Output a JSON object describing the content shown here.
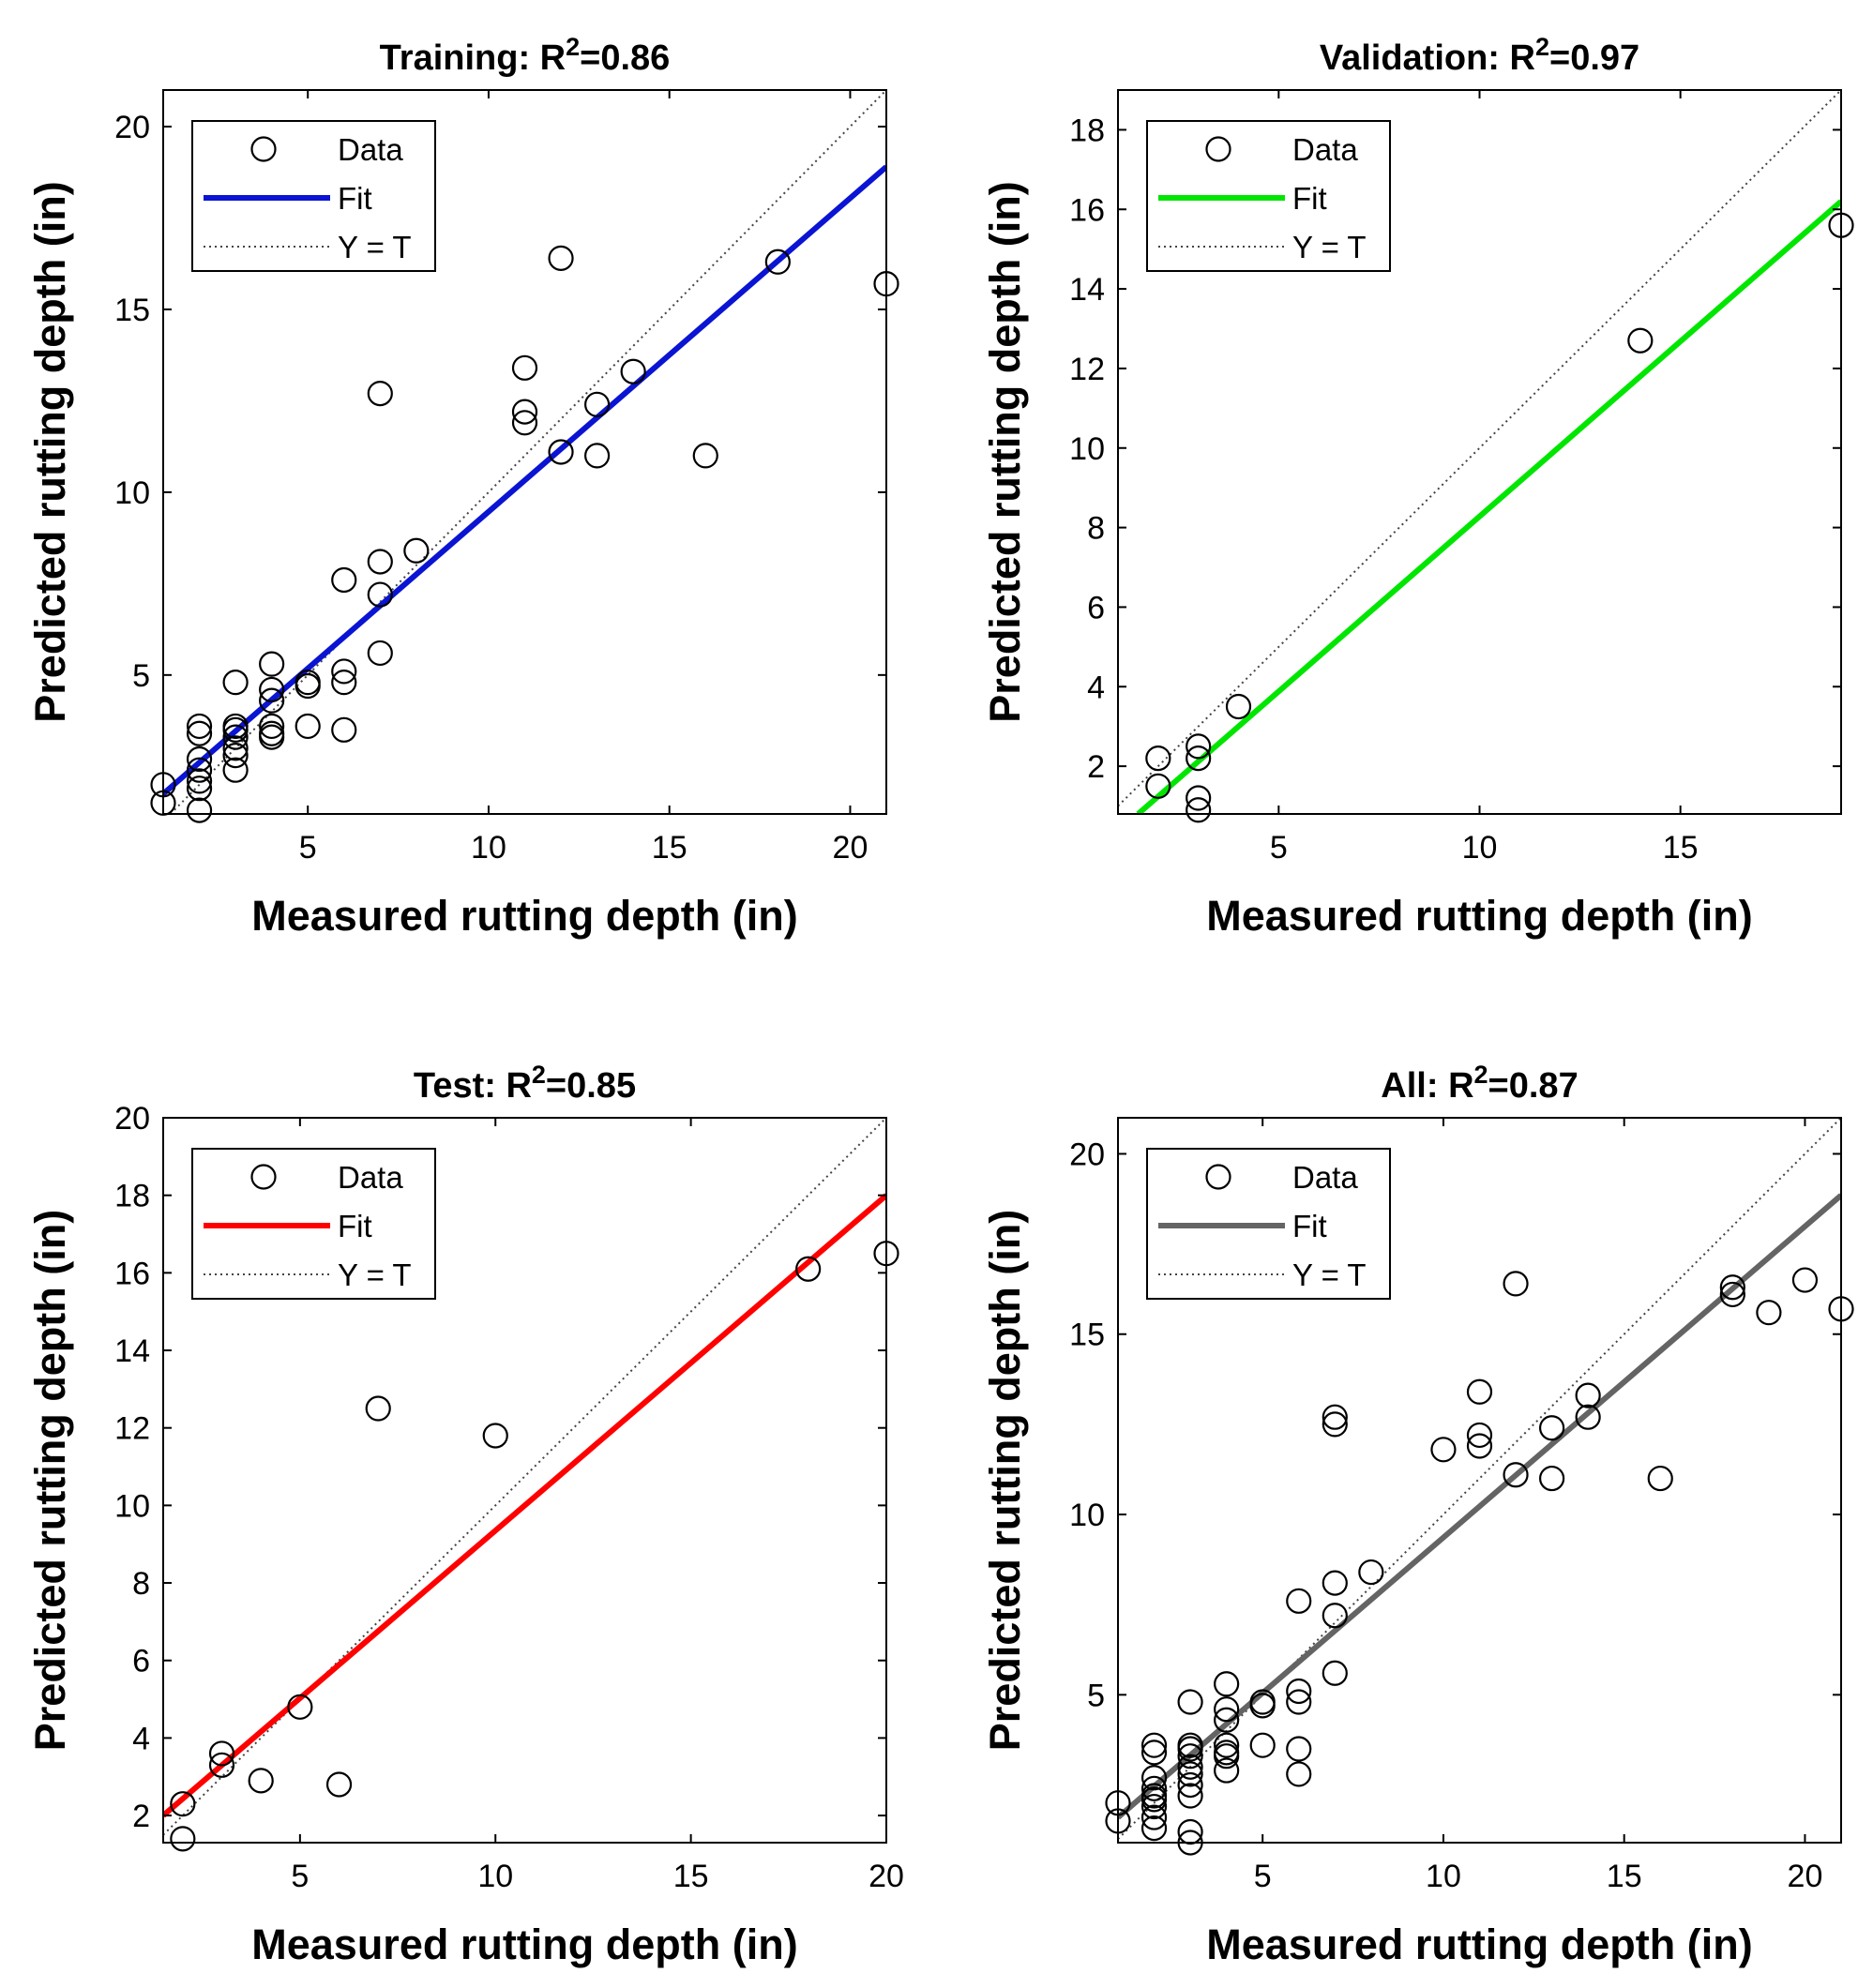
{
  "chart_data": [
    {
      "type": "scatter",
      "panel": "Training",
      "title": "Training: R²=0.86",
      "title_prefix": "Training: R",
      "title_sup": "2",
      "title_suffix": "=0.86",
      "xlabel": "Measured rutting depth (in)",
      "ylabel": "Predicted rutting depth (in)",
      "xlim": [
        1,
        21
      ],
      "ylim": [
        1.2,
        21
      ],
      "xticks": [
        5,
        10,
        15,
        20
      ],
      "yticks": [
        5,
        10,
        15,
        20
      ],
      "legend": {
        "position": "top-left",
        "entries": [
          "Data",
          "Fit",
          "Y = T"
        ]
      },
      "fit_color": "#0a14d2",
      "fit_line": {
        "x": [
          1,
          21
        ],
        "y": [
          1.75,
          18.9
        ]
      },
      "points": [
        [
          1,
          2.0
        ],
        [
          1,
          1.5
        ],
        [
          2,
          1.3
        ],
        [
          2,
          1.9
        ],
        [
          2,
          2.1
        ],
        [
          2,
          2.4
        ],
        [
          2,
          2.7
        ],
        [
          2,
          3.4
        ],
        [
          2,
          3.6
        ],
        [
          3,
          2.4
        ],
        [
          3,
          2.8
        ],
        [
          3,
          3.0
        ],
        [
          3,
          3.3
        ],
        [
          3,
          3.5
        ],
        [
          3,
          3.6
        ],
        [
          3,
          4.8
        ],
        [
          4,
          3.3
        ],
        [
          4,
          3.4
        ],
        [
          4,
          3.6
        ],
        [
          4,
          4.3
        ],
        [
          4,
          4.6
        ],
        [
          4,
          5.3
        ],
        [
          5,
          3.6
        ],
        [
          5,
          4.7
        ],
        [
          5,
          4.8
        ],
        [
          6,
          3.5
        ],
        [
          6,
          4.8
        ],
        [
          6,
          5.1
        ],
        [
          6,
          7.6
        ],
        [
          7,
          5.6
        ],
        [
          7,
          7.2
        ],
        [
          7,
          8.1
        ],
        [
          7,
          12.7
        ],
        [
          8,
          8.4
        ],
        [
          11,
          11.9
        ],
        [
          11,
          12.2
        ],
        [
          11,
          13.4
        ],
        [
          12,
          11.1
        ],
        [
          12,
          16.4
        ],
        [
          13,
          11.0
        ],
        [
          13,
          12.4
        ],
        [
          14,
          13.3
        ],
        [
          16,
          11.0
        ],
        [
          18,
          16.3
        ],
        [
          21,
          15.7
        ]
      ]
    },
    {
      "type": "scatter",
      "panel": "Validation",
      "title": "Validation: R²=0.97",
      "title_prefix": "Validation: R",
      "title_sup": "2",
      "title_suffix": "=0.97",
      "xlabel": "Measured rutting depth (in)",
      "ylabel": "Predicted rutting depth (in)",
      "xlim": [
        1,
        19
      ],
      "ylim": [
        0.8,
        19
      ],
      "xticks": [
        5,
        10,
        15
      ],
      "yticks": [
        2,
        4,
        6,
        8,
        10,
        12,
        14,
        16,
        18
      ],
      "legend": {
        "position": "top-left",
        "entries": [
          "Data",
          "Fit",
          "Y = T"
        ]
      },
      "fit_color": "#00e600",
      "fit_line": {
        "x": [
          1.5,
          19
        ],
        "y": [
          0.8,
          16.2
        ]
      },
      "points": [
        [
          2,
          2.2
        ],
        [
          2,
          1.5
        ],
        [
          3,
          2.5
        ],
        [
          3,
          2.2
        ],
        [
          3,
          1.2
        ],
        [
          3,
          0.9
        ],
        [
          4,
          3.5
        ],
        [
          14,
          12.7
        ],
        [
          19,
          15.6
        ]
      ]
    },
    {
      "type": "scatter",
      "panel": "Test",
      "title": "Test: R²=0.85",
      "title_prefix": "Test: R",
      "title_sup": "2",
      "title_suffix": "=0.85",
      "xlabel": "Measured rutting depth (in)",
      "ylabel": "Predicted rutting depth (in)",
      "xlim": [
        1.5,
        20
      ],
      "ylim": [
        1.3,
        20
      ],
      "xticks": [
        5,
        10,
        15,
        20
      ],
      "yticks": [
        2,
        4,
        6,
        8,
        10,
        12,
        14,
        16,
        18,
        20
      ],
      "legend": {
        "position": "top-left",
        "entries": [
          "Data",
          "Fit",
          "Y = T"
        ]
      },
      "fit_color": "#ff0000",
      "fit_line": {
        "x": [
          1.5,
          20
        ],
        "y": [
          2.0,
          18.0
        ]
      },
      "points": [
        [
          2,
          2.3
        ],
        [
          2,
          1.4
        ],
        [
          3,
          3.6
        ],
        [
          3,
          3.3
        ],
        [
          4,
          2.9
        ],
        [
          5,
          4.8
        ],
        [
          6,
          2.8
        ],
        [
          7,
          12.5
        ],
        [
          10,
          11.8
        ],
        [
          18,
          16.1
        ],
        [
          20,
          16.5
        ]
      ]
    },
    {
      "type": "scatter",
      "panel": "All",
      "title": "All: R²=0.87",
      "title_prefix": "All: R",
      "title_sup": "2",
      "title_suffix": "=0.87",
      "xlabel": "Measured rutting depth (in)",
      "ylabel": "Predicted rutting depth (in)",
      "xlim": [
        1,
        21
      ],
      "ylim": [
        0.9,
        21
      ],
      "xticks": [
        5,
        10,
        15,
        20
      ],
      "yticks": [
        5,
        10,
        15,
        20
      ],
      "legend": {
        "position": "top-left",
        "entries": [
          "Data",
          "Fit",
          "Y = T"
        ]
      },
      "fit_color": "#646464",
      "fit_line": {
        "x": [
          1,
          21
        ],
        "y": [
          1.6,
          18.85
        ]
      },
      "points": [
        [
          1,
          2.0
        ],
        [
          1,
          1.5
        ],
        [
          2,
          1.3
        ],
        [
          2,
          1.6
        ],
        [
          2,
          1.9
        ],
        [
          2,
          2.1
        ],
        [
          2,
          2.2
        ],
        [
          2,
          2.4
        ],
        [
          2,
          2.7
        ],
        [
          2,
          3.4
        ],
        [
          2,
          3.6
        ],
        [
          3,
          0.9
        ],
        [
          3,
          1.2
        ],
        [
          3,
          2.2
        ],
        [
          3,
          2.5
        ],
        [
          3,
          2.8
        ],
        [
          3,
          3.0
        ],
        [
          3,
          3.3
        ],
        [
          3,
          3.5
        ],
        [
          3,
          3.6
        ],
        [
          3,
          4.8
        ],
        [
          4,
          2.9
        ],
        [
          4,
          3.3
        ],
        [
          4,
          3.4
        ],
        [
          4,
          3.6
        ],
        [
          4,
          4.3
        ],
        [
          4,
          4.6
        ],
        [
          4,
          5.3
        ],
        [
          5,
          3.6
        ],
        [
          5,
          4.7
        ],
        [
          5,
          4.8
        ],
        [
          6,
          2.8
        ],
        [
          6,
          3.5
        ],
        [
          6,
          4.8
        ],
        [
          6,
          5.1
        ],
        [
          6,
          7.6
        ],
        [
          7,
          5.6
        ],
        [
          7,
          7.2
        ],
        [
          7,
          8.1
        ],
        [
          7,
          12.5
        ],
        [
          7,
          12.7
        ],
        [
          8,
          8.4
        ],
        [
          10,
          11.8
        ],
        [
          11,
          11.9
        ],
        [
          11,
          12.2
        ],
        [
          11,
          13.4
        ],
        [
          12,
          11.1
        ],
        [
          12,
          16.4
        ],
        [
          13,
          11.0
        ],
        [
          13,
          12.4
        ],
        [
          14,
          12.7
        ],
        [
          14,
          13.3
        ],
        [
          16,
          11.0
        ],
        [
          18,
          16.1
        ],
        [
          18,
          16.3
        ],
        [
          19,
          15.6
        ],
        [
          20,
          16.5
        ],
        [
          21,
          15.7
        ]
      ]
    }
  ]
}
